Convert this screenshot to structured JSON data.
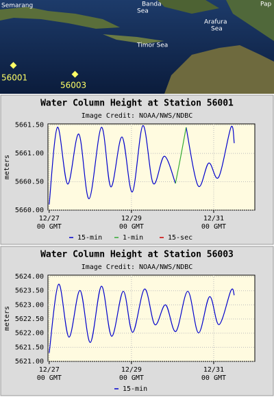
{
  "map": {
    "labels": [
      "Semarang",
      "Banda",
      "Sea",
      "Arafura",
      "Sea",
      "Timor Sea",
      "Pap"
    ],
    "stations": [
      "56001",
      "56003"
    ]
  },
  "chart_data": [
    {
      "type": "line",
      "title": "Water Column Height at Station 56001",
      "subtitle": "Image Credit: NOAA/NWS/NDBC",
      "y_label": "meters",
      "xlim": [
        -0.03,
        5.0
      ],
      "ylim": [
        5660.0,
        5661.52
      ],
      "xticks": [
        {
          "value": 0,
          "label": "12/27\n00 GMT"
        },
        {
          "value": 2,
          "label": "12/29\n00 GMT"
        },
        {
          "value": 4,
          "label": "12/31\n00 GMT"
        }
      ],
      "yticks": [
        {
          "value": 5660.0,
          "label": "5660.00"
        },
        {
          "value": 5660.5,
          "label": "5660.50"
        },
        {
          "value": 5661.0,
          "label": "5661.00"
        },
        {
          "value": 5661.5,
          "label": "5661.50"
        }
      ],
      "grid": true,
      "series": [
        {
          "name": "15-min",
          "color": "#0000cc",
          "x": [
            0,
            0.2,
            0.45,
            0.72,
            0.97,
            1.27,
            1.5,
            1.77,
            2.02,
            2.28,
            2.53,
            2.8,
            3.07,
            null,
            3.33,
            3.62,
            3.88,
            4.12,
            4.42,
            4.5
          ],
          "values": [
            5660.1,
            5661.46,
            5660.46,
            5661.34,
            5660.2,
            5661.46,
            5660.41,
            5661.29,
            5660.32,
            5661.49,
            5660.47,
            5660.95,
            5660.47,
            null,
            5661.46,
            5660.43,
            5660.83,
            5660.58,
            5661.46,
            5661.18
          ]
        },
        {
          "name": "1-min",
          "color": "#33aa33",
          "x": [
            3.07,
            3.2,
            3.33
          ],
          "values": [
            5660.47,
            5660.95,
            5661.46
          ]
        },
        {
          "name": "15-sec",
          "color": "#cc0000",
          "x": [],
          "values": []
        }
      ]
    },
    {
      "type": "line",
      "title": "Water Column Height at Station 56003",
      "subtitle": "Image Credit: NOAA/NWS/NDBC",
      "y_label": "meters",
      "xlim": [
        -0.03,
        5.0
      ],
      "ylim": [
        5621.0,
        5624.05
      ],
      "xticks": [
        {
          "value": 0,
          "label": "12/27\n00 GMT"
        },
        {
          "value": 2,
          "label": "12/29\n00 GMT"
        },
        {
          "value": 4,
          "label": "12/31\n00 GMT"
        }
      ],
      "yticks": [
        {
          "value": 5621.0,
          "label": "5621.00"
        },
        {
          "value": 5621.5,
          "label": "5621.50"
        },
        {
          "value": 5622.0,
          "label": "5622.00"
        },
        {
          "value": 5622.5,
          "label": "5622.50"
        },
        {
          "value": 5623.0,
          "label": "5623.00"
        },
        {
          "value": 5623.5,
          "label": "5623.50"
        },
        {
          "value": 5624.0,
          "label": "5624.00"
        }
      ],
      "grid": true,
      "series": [
        {
          "name": "15-min",
          "color": "#0000cc",
          "x": [
            0,
            0.23,
            0.48,
            0.75,
            1.0,
            1.27,
            1.52,
            1.8,
            2.03,
            2.32,
            2.57,
            2.83,
            3.08,
            3.37,
            3.63,
            3.9,
            4.13,
            4.42,
            4.5
          ],
          "values": [
            5621.3,
            5623.73,
            5621.86,
            5623.51,
            5621.67,
            5623.66,
            5621.89,
            5623.48,
            5622.03,
            5623.56,
            5622.3,
            5623.0,
            5622.06,
            5623.48,
            5622.01,
            5623.29,
            5622.3,
            5623.51,
            5623.34
          ]
        }
      ]
    }
  ]
}
